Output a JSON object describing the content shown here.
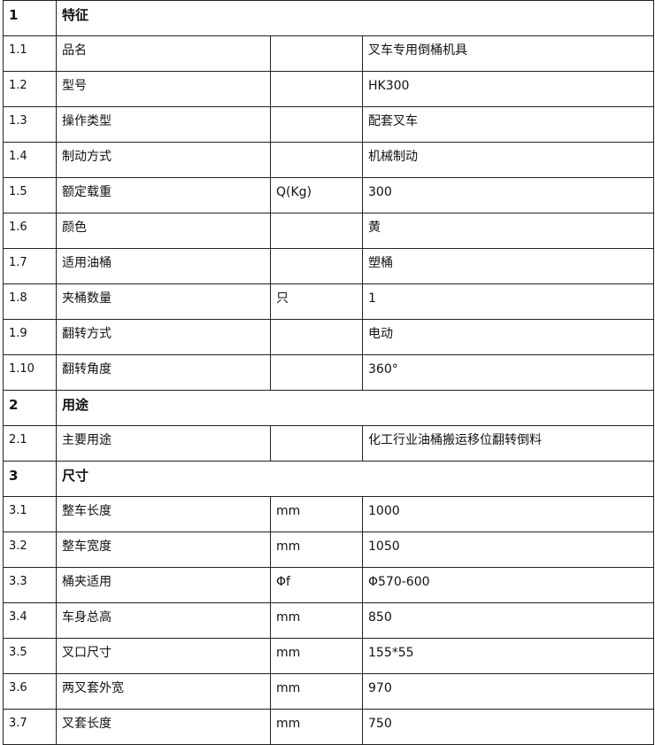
{
  "sections": [
    {
      "no": "1",
      "title": "特征",
      "rows": [
        {
          "no": "1.1",
          "name": "品名",
          "unit": "",
          "value": "叉车专用倒桶机具"
        },
        {
          "no": "1.2",
          "name": "型号",
          "unit": "",
          "value": "HK300"
        },
        {
          "no": "1.3",
          "name": "操作类型",
          "unit": "",
          "value": "配套叉车"
        },
        {
          "no": "1.4",
          "name": "制动方式",
          "unit": "",
          "value": "机械制动"
        },
        {
          "no": "1.5",
          "name": "额定载重",
          "unit": "Q(Kg)",
          "value": "300"
        },
        {
          "no": "1.6",
          "name": "颜色",
          "unit": "",
          "value": "黄"
        },
        {
          "no": "1.7",
          "name": "适用油桶",
          "unit": "",
          "value": "塑桶"
        },
        {
          "no": "1.8",
          "name": "夹桶数量",
          "unit": "只",
          "value": "1"
        },
        {
          "no": "1.9",
          "name": "翻转方式",
          "unit": "",
          "value": "电动"
        },
        {
          "no": "1.10",
          "name": "翻转角度",
          "unit": "",
          "value": "360°"
        }
      ]
    },
    {
      "no": "2",
      "title": "用途",
      "rows": [
        {
          "no": "2.1",
          "name": "主要用途",
          "unit": "",
          "value": "化工行业油桶搬运移位翻转倒料"
        }
      ]
    },
    {
      "no": "3",
      "title": "尺寸",
      "rows": [
        {
          "no": "3.1",
          "name": "整车长度",
          "unit": "mm",
          "value": "1000"
        },
        {
          "no": "3.2",
          "name": "整车宽度",
          "unit": "mm",
          "value": "1050"
        },
        {
          "no": "3.3",
          "name": "桶夹适用",
          "unit": "Φf",
          "value": "Φ570-600"
        },
        {
          "no": "3.4",
          "name": "车身总高",
          "unit": "mm",
          "value": "850"
        },
        {
          "no": "3.5",
          "name": "叉口尺寸",
          "unit": "mm",
          "value": "155*55"
        },
        {
          "no": "3.6",
          "name": "两叉套外宽",
          "unit": "mm",
          "value": "970"
        },
        {
          "no": "3.7",
          "name": "叉套长度",
          "unit": "mm",
          "value": "750"
        }
      ]
    }
  ]
}
